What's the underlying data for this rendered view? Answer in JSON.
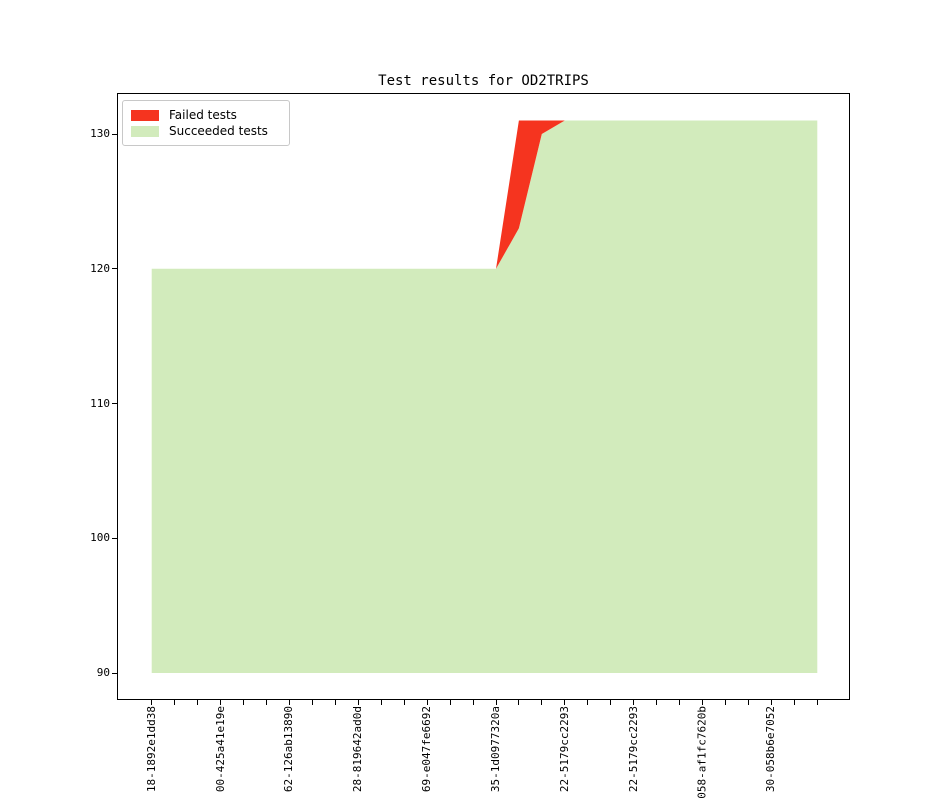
{
  "window": {
    "background": "#ffffff"
  },
  "chart": {
    "title": "Test results for OD2TRIPS",
    "legend": {
      "position": "upper left",
      "items": [
        {
          "label": "Failed tests",
          "color": "#f5341f"
        },
        {
          "label": "Succeeded tests",
          "color": "#d2ebbc"
        }
      ]
    }
  },
  "chart_data": {
    "type": "area",
    "stacked": true,
    "title": "Test results for OD2TRIPS",
    "grid": false,
    "legend_position": "upper left",
    "n_points": 30,
    "x_label_every": 3,
    "x_tick_labels": [
      "18-1892e1dd38",
      "00-425a41e19e",
      "62-126ab13890",
      "28-819642ad0d",
      "69-e047fe6692",
      "35-1d0977320a",
      "22-5179cc2293",
      "22-5179cc2293",
      "058-af1fc7620b",
      "30-058b6e7052"
    ],
    "baseline": 90,
    "yticks": [
      90,
      100,
      110,
      120,
      130
    ],
    "ylim": [
      88,
      133.3
    ],
    "series": [
      {
        "name": "Succeeded tests",
        "color": "#d2ebbc",
        "values": [
          120,
          120,
          120,
          120,
          120,
          120,
          120,
          120,
          120,
          120,
          120,
          120,
          120,
          120,
          120,
          120,
          123,
          130,
          131,
          131,
          131,
          131,
          131,
          131,
          131,
          131,
          131,
          131,
          131,
          131
        ]
      },
      {
        "name": "Failed tests",
        "color": "#f5341f",
        "values": [
          0,
          0,
          0,
          0,
          0,
          0,
          0,
          0,
          0,
          0,
          0,
          0,
          0,
          0,
          0,
          0,
          8,
          1,
          0,
          0,
          0,
          0,
          0,
          0,
          0,
          0,
          0,
          0,
          0,
          0
        ]
      }
    ]
  }
}
